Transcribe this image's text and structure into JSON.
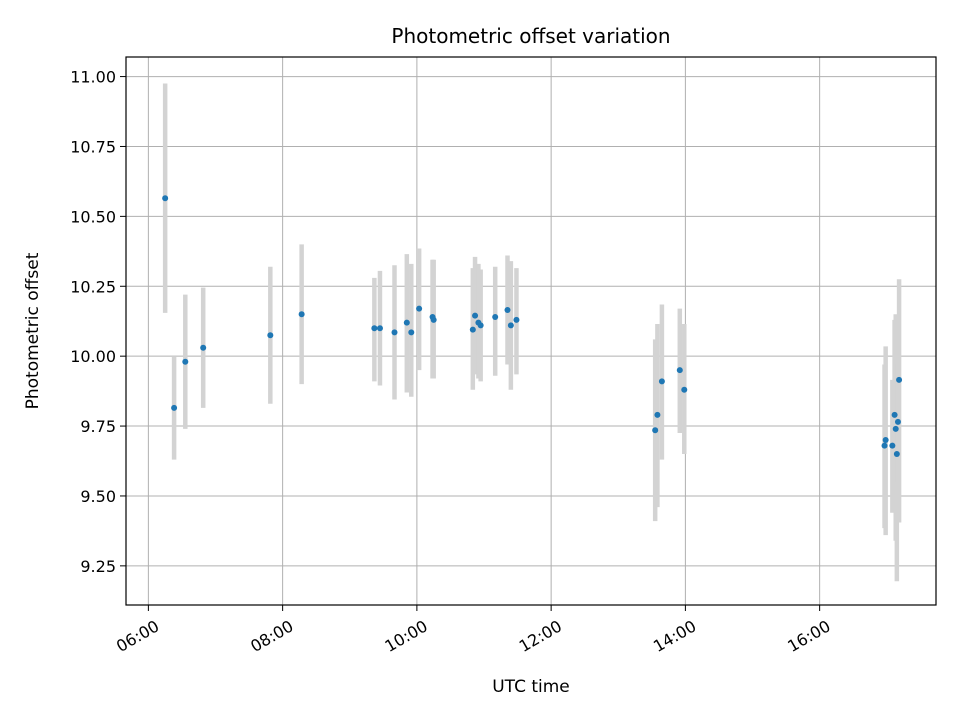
{
  "chart_data": {
    "type": "scatter",
    "title": "Photometric offset variation",
    "xlabel": "UTC time",
    "ylabel": "Photometric offset",
    "x_ticks": [
      "06:00",
      "08:00",
      "10:00",
      "12:00",
      "14:00",
      "16:00"
    ],
    "y_ticks": [
      "9.25",
      "9.50",
      "9.75",
      "10.00",
      "10.25",
      "10.50",
      "10.75",
      "11.00"
    ],
    "xlim": [
      "05:40",
      "17:44"
    ],
    "ylim": [
      9.11,
      11.07
    ],
    "grid": true,
    "colors": {
      "points": "#1f77b4",
      "errorbars": "#d3d3d3",
      "grid": "#b0b0b0"
    },
    "points": [
      {
        "x": "06:15",
        "y": 10.565,
        "ylow": 10.155,
        "yhigh": 10.975
      },
      {
        "x": "06:23",
        "y": 9.815,
        "ylow": 9.63,
        "yhigh": 10.0
      },
      {
        "x": "06:33",
        "y": 9.98,
        "ylow": 9.74,
        "yhigh": 10.22
      },
      {
        "x": "06:49",
        "y": 10.03,
        "ylow": 9.815,
        "yhigh": 10.245
      },
      {
        "x": "07:49",
        "y": 10.075,
        "ylow": 9.83,
        "yhigh": 10.32
      },
      {
        "x": "08:17",
        "y": 10.15,
        "ylow": 9.9,
        "yhigh": 10.4
      },
      {
        "x": "09:22",
        "y": 10.1,
        "ylow": 9.91,
        "yhigh": 10.28
      },
      {
        "x": "09:27",
        "y": 10.1,
        "ylow": 9.895,
        "yhigh": 10.305
      },
      {
        "x": "09:40",
        "y": 10.085,
        "ylow": 9.845,
        "yhigh": 10.325
      },
      {
        "x": "09:51",
        "y": 10.12,
        "ylow": 9.87,
        "yhigh": 10.365
      },
      {
        "x": "09:55",
        "y": 10.085,
        "ylow": 9.855,
        "yhigh": 10.33
      },
      {
        "x": "10:02",
        "y": 10.17,
        "ylow": 9.95,
        "yhigh": 10.385
      },
      {
        "x": "10:14",
        "y": 10.14,
        "ylow": 9.92,
        "yhigh": 10.345
      },
      {
        "x": "10:15",
        "y": 10.13,
        "ylow": 9.92,
        "yhigh": 10.345
      },
      {
        "x": "10:50",
        "y": 10.095,
        "ylow": 9.88,
        "yhigh": 10.315
      },
      {
        "x": "10:52",
        "y": 10.145,
        "ylow": 9.935,
        "yhigh": 10.355
      },
      {
        "x": "10:55",
        "y": 10.12,
        "ylow": 9.92,
        "yhigh": 10.33
      },
      {
        "x": "10:57",
        "y": 10.11,
        "ylow": 9.91,
        "yhigh": 10.31
      },
      {
        "x": "11:10",
        "y": 10.14,
        "ylow": 9.93,
        "yhigh": 10.32
      },
      {
        "x": "11:21",
        "y": 10.165,
        "ylow": 9.97,
        "yhigh": 10.36
      },
      {
        "x": "11:24",
        "y": 10.11,
        "ylow": 9.88,
        "yhigh": 10.34
      },
      {
        "x": "11:29",
        "y": 10.13,
        "ylow": 9.935,
        "yhigh": 10.315
      },
      {
        "x": "13:33",
        "y": 9.735,
        "ylow": 9.41,
        "yhigh": 10.06
      },
      {
        "x": "13:35",
        "y": 9.79,
        "ylow": 9.46,
        "yhigh": 10.115
      },
      {
        "x": "13:39",
        "y": 9.91,
        "ylow": 9.63,
        "yhigh": 10.185
      },
      {
        "x": "13:55",
        "y": 9.95,
        "ylow": 9.725,
        "yhigh": 10.17
      },
      {
        "x": "13:59",
        "y": 9.88,
        "ylow": 9.65,
        "yhigh": 10.115
      },
      {
        "x": "16:58",
        "y": 9.68,
        "ylow": 9.385,
        "yhigh": 9.97
      },
      {
        "x": "16:59",
        "y": 9.7,
        "ylow": 9.36,
        "yhigh": 10.035
      },
      {
        "x": "17:05",
        "y": 9.68,
        "ylow": 9.44,
        "yhigh": 9.915
      },
      {
        "x": "17:07",
        "y": 9.79,
        "ylow": 9.45,
        "yhigh": 10.13
      },
      {
        "x": "17:08",
        "y": 9.74,
        "ylow": 9.34,
        "yhigh": 10.15
      },
      {
        "x": "17:09",
        "y": 9.65,
        "ylow": 9.195,
        "yhigh": 10.105
      },
      {
        "x": "17:10",
        "y": 9.765,
        "ylow": 9.55,
        "yhigh": 9.975
      },
      {
        "x": "17:11",
        "y": 9.915,
        "ylow": 9.405,
        "yhigh": 10.275
      }
    ]
  }
}
